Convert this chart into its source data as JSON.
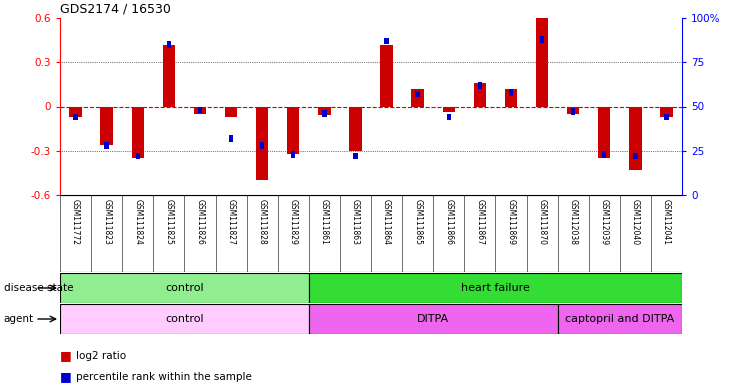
{
  "title": "GDS2174 / 16530",
  "samples": [
    "GSM111772",
    "GSM111823",
    "GSM111824",
    "GSM111825",
    "GSM111826",
    "GSM111827",
    "GSM111828",
    "GSM111829",
    "GSM111861",
    "GSM111863",
    "GSM111864",
    "GSM111865",
    "GSM111866",
    "GSM111867",
    "GSM111869",
    "GSM111870",
    "GSM112038",
    "GSM112039",
    "GSM112040",
    "GSM112041"
  ],
  "log2ratio": [
    -0.07,
    -0.26,
    -0.35,
    0.42,
    -0.05,
    -0.07,
    -0.5,
    -0.32,
    -0.06,
    -0.3,
    0.42,
    0.12,
    -0.04,
    0.16,
    0.12,
    0.6,
    -0.05,
    -0.35,
    -0.43,
    -0.07
  ],
  "percentile": [
    44,
    28,
    22,
    85,
    48,
    32,
    28,
    23,
    46,
    22,
    87,
    57,
    44,
    62,
    58,
    88,
    47,
    23,
    22,
    44
  ],
  "disease_state_groups": [
    {
      "label": "control",
      "start": 0,
      "end": 7,
      "color": "#90EE90"
    },
    {
      "label": "heart failure",
      "start": 8,
      "end": 19,
      "color": "#33DD33"
    }
  ],
  "agent_groups": [
    {
      "label": "control",
      "start": 0,
      "end": 7,
      "color": "#FFCCFF"
    },
    {
      "label": "DITPA",
      "start": 8,
      "end": 15,
      "color": "#EE66EE"
    },
    {
      "label": "captopril and DITPA",
      "start": 16,
      "end": 19,
      "color": "#EE66EE"
    }
  ],
  "bar_color_red": "#CC0000",
  "bar_color_blue": "#0000CC",
  "ylim": [
    -0.6,
    0.6
  ],
  "yticks_left": [
    -0.6,
    -0.3,
    0.0,
    0.3,
    0.6
  ],
  "yticks_right_pct": [
    0,
    25,
    50,
    75,
    100
  ],
  "label_bg": "#D0D0D0",
  "bg_color": "#ffffff"
}
